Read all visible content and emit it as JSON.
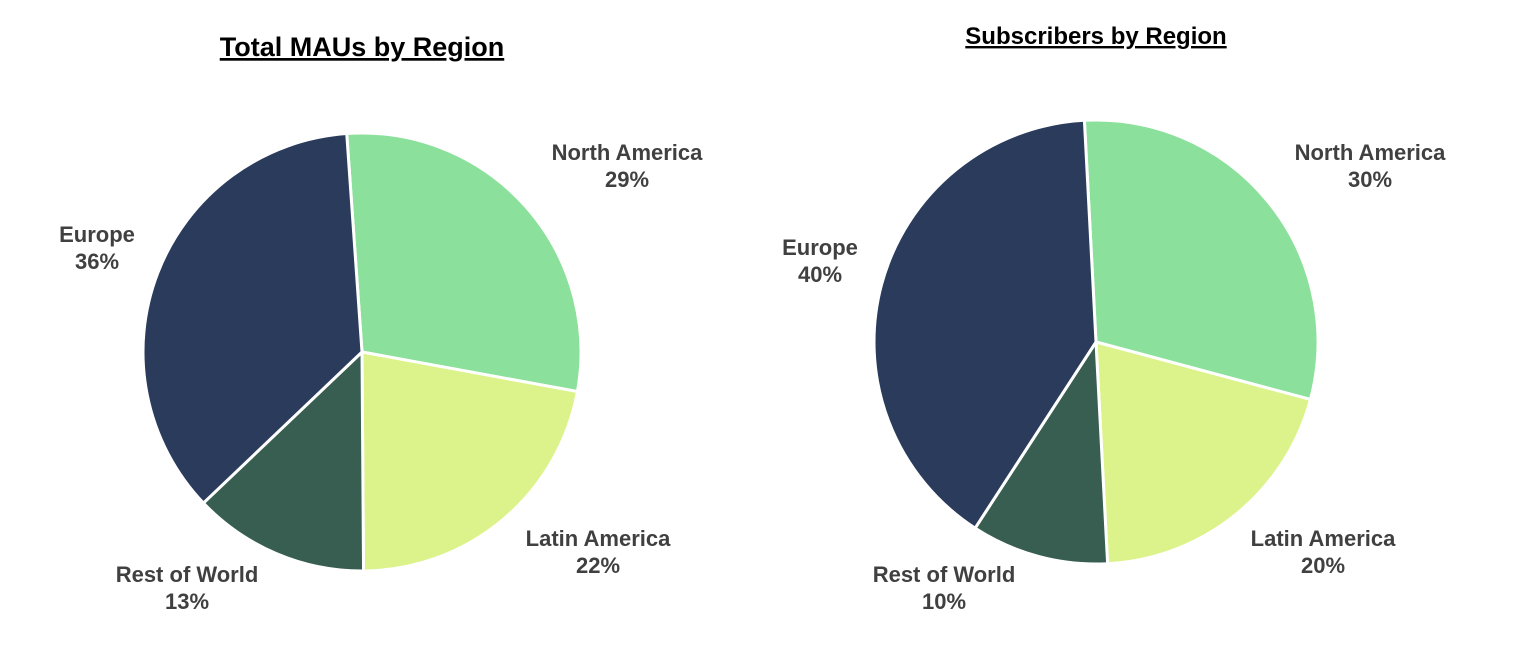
{
  "chart_data": [
    {
      "type": "pie",
      "title": "Total MAUs by Region",
      "slices": [
        {
          "label": "North America",
          "value": 29,
          "value_label": "29%",
          "color": "#8be09b"
        },
        {
          "label": "Latin America",
          "value": 22,
          "value_label": "22%",
          "color": "#dcf28a"
        },
        {
          "label": "Rest of World",
          "value": 13,
          "value_label": "13%",
          "color": "#375e50"
        },
        {
          "label": "Europe",
          "value": 36,
          "value_label": "36%",
          "color": "#2a3b5c"
        }
      ]
    },
    {
      "type": "pie",
      "title": "Subscribers by Region",
      "slices": [
        {
          "label": "North America",
          "value": 30,
          "value_label": "30%",
          "color": "#8be09b"
        },
        {
          "label": "Latin America",
          "value": 20,
          "value_label": "20%",
          "color": "#dcf28a"
        },
        {
          "label": "Rest of World",
          "value": 10,
          "value_label": "10%",
          "color": "#375e50"
        },
        {
          "label": "Europe",
          "value": 40,
          "value_label": "40%",
          "color": "#2a3b5c"
        }
      ]
    }
  ]
}
